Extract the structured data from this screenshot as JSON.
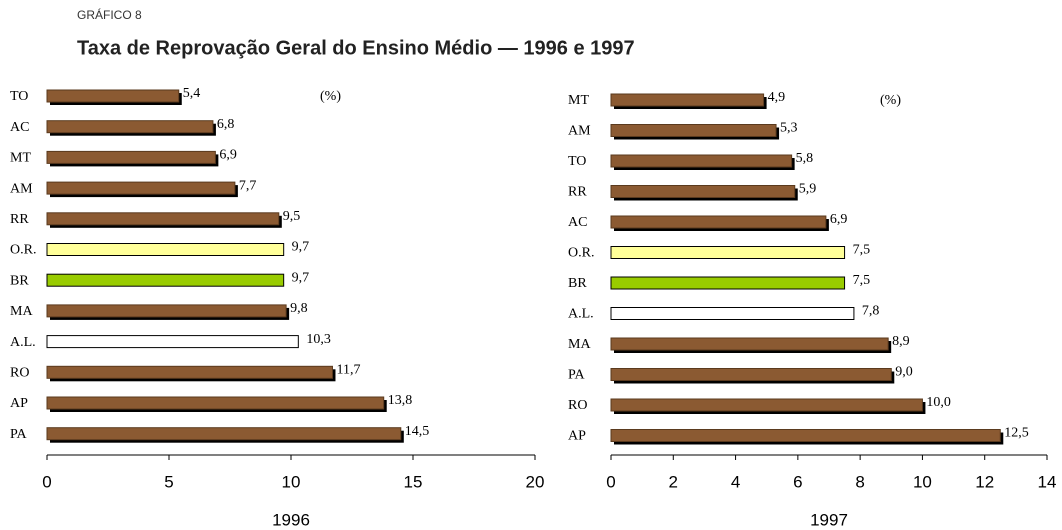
{
  "header": {
    "label": "GRÁFICO 8",
    "title": "Taxa de Reprovação Geral do Ensino Médio — 1996 e 1997"
  },
  "chart_data": [
    {
      "type": "bar",
      "orientation": "horizontal",
      "xlabel": "1996",
      "annotation": "(%)",
      "categories": [
        "TO",
        "AC",
        "MT",
        "AM",
        "RR",
        "O.R.",
        "BR",
        "MA",
        "A.L.",
        "RO",
        "AP",
        "PA"
      ],
      "values": [
        5.4,
        6.8,
        6.9,
        7.7,
        9.5,
        9.7,
        9.7,
        9.8,
        10.3,
        11.7,
        13.8,
        14.5
      ],
      "value_labels": [
        "5,4",
        "6,8",
        "6,9",
        "7,7",
        "9,5",
        "9,7",
        "9,7",
        "9,8",
        "10,3",
        "11,7",
        "13,8",
        "14,5"
      ],
      "color": "#8b5a32",
      "colors": [
        "#8b5a32",
        "#8b5a32",
        "#8b5a32",
        "#8b5a32",
        "#8b5a32",
        "#ffff99",
        "#99cc00",
        "#8b5a32",
        "#ffffff",
        "#8b5a32",
        "#8b5a32",
        "#8b5a32"
      ],
      "xlim": [
        0,
        20
      ],
      "xticks": [
        0,
        5,
        10,
        15,
        20
      ]
    },
    {
      "type": "bar",
      "orientation": "horizontal",
      "xlabel": "1997",
      "annotation": "(%)",
      "categories": [
        "MT",
        "AM",
        "TO",
        "RR",
        "AC",
        "O.R.",
        "BR",
        "A.L.",
        "MA",
        "PA",
        "RO",
        "AP"
      ],
      "values": [
        4.9,
        5.3,
        5.8,
        5.9,
        6.9,
        7.5,
        7.5,
        7.8,
        8.9,
        9.0,
        10.0,
        12.5
      ],
      "value_labels": [
        "4,9",
        "5,3",
        "5,8",
        "5,9",
        "6,9",
        "7,5",
        "7,5",
        "7,8",
        "8,9",
        "9,0",
        "10,0",
        "12,5"
      ],
      "color": "#8b5a32",
      "colors": [
        "#8b5a32",
        "#8b5a32",
        "#8b5a32",
        "#8b5a32",
        "#8b5a32",
        "#ffff99",
        "#99cc00",
        "#ffffff",
        "#8b5a32",
        "#8b5a32",
        "#8b5a32",
        "#8b5a32"
      ],
      "xlim": [
        0,
        14
      ],
      "xticks": [
        0,
        2,
        4,
        6,
        8,
        10,
        12,
        14
      ]
    }
  ]
}
